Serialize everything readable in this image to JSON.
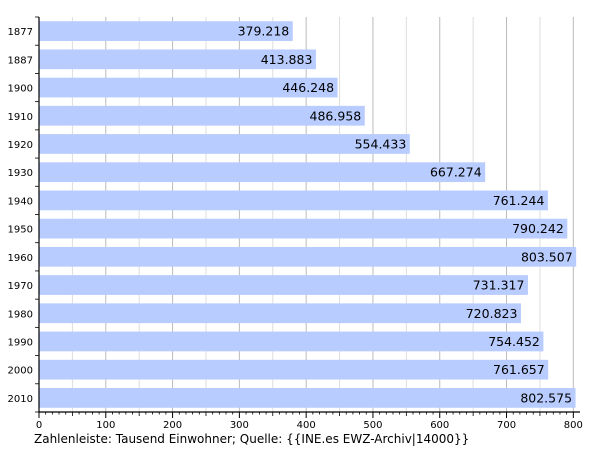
{
  "chart_data": {
    "type": "bar",
    "orientation": "horizontal",
    "categories": [
      "1877",
      "1887",
      "1900",
      "1910",
      "1920",
      "1930",
      "1940",
      "1950",
      "1960",
      "1970",
      "1980",
      "1990",
      "2000",
      "2010"
    ],
    "values": [
      379.218,
      413.883,
      446.248,
      486.958,
      554.433,
      667.274,
      761.244,
      790.242,
      803.507,
      731.317,
      720.823,
      754.452,
      761.657,
      802.575
    ],
    "value_labels": [
      "379.218",
      "413.883",
      "446.248",
      "486.958",
      "554.433",
      "667.274",
      "761.244",
      "790.242",
      "803.507",
      "731.317",
      "720.823",
      "754.452",
      "761.657",
      "802.575"
    ],
    "xlim": [
      0,
      810
    ],
    "x_ticks": [
      0,
      100,
      200,
      300,
      400,
      500,
      600,
      700,
      800
    ],
    "grid": true,
    "bar_color": "#b9ccff",
    "grid_color_major": "#bbbbbb",
    "grid_color_minor": "#dddddd",
    "caption": "Zahlenleiste: Tausend Einwohner; Quelle: {{INE.es EWZ-Archiv|14000}}"
  }
}
